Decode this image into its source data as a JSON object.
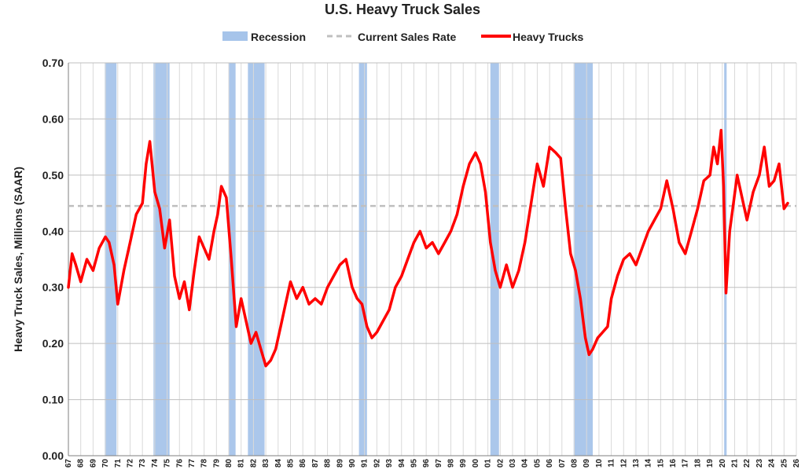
{
  "chart_data": {
    "type": "line",
    "title": "U.S. Heavy Truck Sales",
    "ylabel": "Heavy Truck Sales, Millions (SAAR)",
    "xlabel": "",
    "ylim": [
      0,
      0.7
    ],
    "xlim": [
      1967,
      2026
    ],
    "y_ticks": [
      "0.00",
      "0.10",
      "0.20",
      "0.30",
      "0.40",
      "0.50",
      "0.60",
      "0.70"
    ],
    "x_ticks": [
      "67",
      "68",
      "69",
      "70",
      "71",
      "72",
      "73",
      "74",
      "75",
      "76",
      "77",
      "78",
      "79",
      "80",
      "81",
      "82",
      "83",
      "84",
      "85",
      "86",
      "87",
      "88",
      "89",
      "90",
      "91",
      "92",
      "93",
      "94",
      "95",
      "96",
      "97",
      "98",
      "99",
      "00",
      "01",
      "02",
      "03",
      "04",
      "05",
      "06",
      "07",
      "08",
      "09",
      "10",
      "11",
      "12",
      "13",
      "14",
      "15",
      "16",
      "17",
      "18",
      "19",
      "20",
      "21",
      "22",
      "23",
      "24",
      "25",
      "26"
    ],
    "grid": true,
    "legend": {
      "placement": "top",
      "items": [
        {
          "label": "Recession",
          "kind": "band",
          "color": "#a6c4ea"
        },
        {
          "label": "Current Sales Rate",
          "kind": "dashed",
          "color": "#bfbfbf"
        },
        {
          "label": "Heavy Trucks",
          "kind": "line",
          "color": "#ff0000"
        }
      ]
    },
    "current_sales_rate": 0.445,
    "recessions": [
      [
        1969.95,
        1970.9
      ],
      [
        1973.9,
        1975.2
      ],
      [
        1980.0,
        1980.55
      ],
      [
        1981.55,
        1982.9
      ],
      [
        1990.55,
        1991.2
      ],
      [
        2001.2,
        2001.9
      ],
      [
        2007.95,
        2009.5
      ],
      [
        2020.15,
        2020.35
      ]
    ],
    "series": [
      {
        "name": "Heavy Trucks",
        "color": "#ff0000",
        "x": [
          1967.0,
          1967.3,
          1967.6,
          1968.0,
          1968.5,
          1969.0,
          1969.5,
          1970.0,
          1970.3,
          1970.7,
          1971.0,
          1971.5,
          1972.0,
          1972.5,
          1973.0,
          1973.3,
          1973.6,
          1974.0,
          1974.4,
          1974.8,
          1975.2,
          1975.6,
          1976.0,
          1976.4,
          1976.8,
          1977.2,
          1977.6,
          1978.0,
          1978.4,
          1978.8,
          1979.1,
          1979.4,
          1979.8,
          1980.2,
          1980.6,
          1981.0,
          1981.4,
          1981.8,
          1982.2,
          1982.6,
          1983.0,
          1983.4,
          1983.8,
          1984.2,
          1984.6,
          1985.0,
          1985.5,
          1986.0,
          1986.5,
          1987.0,
          1987.5,
          1988.0,
          1988.5,
          1989.0,
          1989.5,
          1990.0,
          1990.4,
          1990.8,
          1991.2,
          1991.6,
          1992.0,
          1992.5,
          1993.0,
          1993.5,
          1994.0,
          1994.5,
          1995.0,
          1995.5,
          1996.0,
          1996.5,
          1997.0,
          1997.5,
          1998.0,
          1998.5,
          1999.0,
          1999.5,
          2000.0,
          2000.4,
          2000.8,
          2001.2,
          2001.6,
          2002.0,
          2002.5,
          2003.0,
          2003.5,
          2004.0,
          2004.5,
          2005.0,
          2005.5,
          2006.0,
          2006.5,
          2006.9,
          2007.3,
          2007.7,
          2008.1,
          2008.5,
          2008.9,
          2009.2,
          2009.5,
          2009.9,
          2010.3,
          2010.7,
          2011.0,
          2011.5,
          2012.0,
          2012.5,
          2013.0,
          2013.5,
          2014.0,
          2014.5,
          2015.0,
          2015.5,
          2016.0,
          2016.5,
          2017.0,
          2017.5,
          2018.0,
          2018.5,
          2019.0,
          2019.3,
          2019.6,
          2019.9,
          2020.1,
          2020.3,
          2020.6,
          2020.9,
          2021.2,
          2021.6,
          2022.0,
          2022.5,
          2023.0,
          2023.4,
          2023.8,
          2024.2,
          2024.6,
          2025.0,
          2025.3
        ],
        "values": [
          0.3,
          0.36,
          0.34,
          0.31,
          0.35,
          0.33,
          0.37,
          0.39,
          0.38,
          0.34,
          0.27,
          0.33,
          0.38,
          0.43,
          0.45,
          0.52,
          0.56,
          0.47,
          0.44,
          0.37,
          0.42,
          0.32,
          0.28,
          0.31,
          0.26,
          0.33,
          0.39,
          0.37,
          0.35,
          0.4,
          0.43,
          0.48,
          0.46,
          0.35,
          0.23,
          0.28,
          0.24,
          0.2,
          0.22,
          0.19,
          0.16,
          0.17,
          0.19,
          0.23,
          0.27,
          0.31,
          0.28,
          0.3,
          0.27,
          0.28,
          0.27,
          0.3,
          0.32,
          0.34,
          0.35,
          0.3,
          0.28,
          0.27,
          0.23,
          0.21,
          0.22,
          0.24,
          0.26,
          0.3,
          0.32,
          0.35,
          0.38,
          0.4,
          0.37,
          0.38,
          0.36,
          0.38,
          0.4,
          0.43,
          0.48,
          0.52,
          0.54,
          0.52,
          0.47,
          0.38,
          0.33,
          0.3,
          0.34,
          0.3,
          0.33,
          0.38,
          0.45,
          0.52,
          0.48,
          0.55,
          0.54,
          0.53,
          0.44,
          0.36,
          0.33,
          0.28,
          0.21,
          0.18,
          0.19,
          0.21,
          0.22,
          0.23,
          0.28,
          0.32,
          0.35,
          0.36,
          0.34,
          0.37,
          0.4,
          0.42,
          0.44,
          0.49,
          0.44,
          0.38,
          0.36,
          0.4,
          0.44,
          0.49,
          0.5,
          0.55,
          0.52,
          0.58,
          0.48,
          0.29,
          0.4,
          0.45,
          0.5,
          0.46,
          0.42,
          0.47,
          0.5,
          0.55,
          0.48,
          0.49,
          0.52,
          0.44,
          0.45
        ]
      }
    ]
  }
}
